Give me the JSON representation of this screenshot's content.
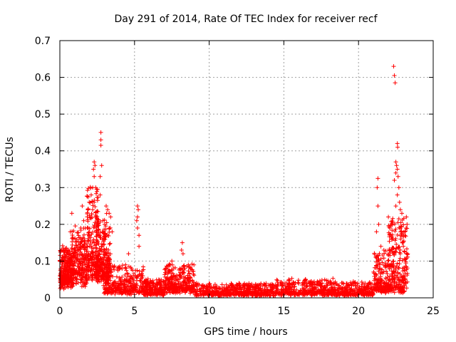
{
  "chart_data": {
    "type": "scatter",
    "title": "Day 291 of 2014, Rate Of TEC Index for receiver recf",
    "xlabel": "GPS time / hours",
    "ylabel": "ROTI / TECUs",
    "xlim": [
      0,
      25
    ],
    "ylim": [
      0,
      0.7
    ],
    "x_ticks": [
      0,
      5,
      10,
      15,
      20,
      25
    ],
    "x_tick_labels": [
      "0",
      "5",
      "10",
      "15",
      "20",
      "25"
    ],
    "y_ticks": [
      0,
      0.1,
      0.2,
      0.3,
      0.4,
      0.5,
      0.6,
      0.7
    ],
    "y_tick_labels": [
      "0",
      "0.1",
      "0.2",
      "0.3",
      "0.4",
      "0.5",
      "0.6",
      "0.7"
    ],
    "grid": true,
    "marker": "+",
    "series_color": "#ff0000",
    "series": [
      {
        "name": "ROTI",
        "segments": [
          {
            "x_start": 0.0,
            "x_end": 0.8,
            "y_base": 0.04,
            "y_spread": 0.09,
            "n": 260
          },
          {
            "x_start": 0.8,
            "x_end": 1.8,
            "y_base": 0.05,
            "y_spread": 0.13,
            "n": 240
          },
          {
            "x_start": 1.8,
            "x_end": 2.6,
            "y_base": 0.07,
            "y_spread": 0.22,
            "n": 220
          },
          {
            "x_start": 2.4,
            "x_end": 3.4,
            "y_base": 0.06,
            "y_spread": 0.15,
            "n": 240
          },
          {
            "x_start": 2.9,
            "x_end": 5.6,
            "y_base": 0.015,
            "y_spread": 0.07,
            "n": 320
          },
          {
            "x_start": 5.6,
            "x_end": 7.0,
            "y_base": 0.01,
            "y_spread": 0.04,
            "n": 200
          },
          {
            "x_start": 7.0,
            "x_end": 9.0,
            "y_base": 0.02,
            "y_spread": 0.07,
            "n": 300
          },
          {
            "x_start": 9.0,
            "x_end": 12.0,
            "y_base": 0.008,
            "y_spread": 0.03,
            "n": 300
          },
          {
            "x_start": 12.0,
            "x_end": 14.5,
            "y_base": 0.008,
            "y_spread": 0.03,
            "n": 260
          },
          {
            "x_start": 14.5,
            "x_end": 18.5,
            "y_base": 0.01,
            "y_spread": 0.04,
            "n": 400
          },
          {
            "x_start": 18.5,
            "x_end": 21.0,
            "y_base": 0.008,
            "y_spread": 0.035,
            "n": 260
          },
          {
            "x_start": 21.0,
            "x_end": 22.0,
            "y_base": 0.02,
            "y_spread": 0.1,
            "n": 160
          },
          {
            "x_start": 22.0,
            "x_end": 23.3,
            "y_base": 0.02,
            "y_spread": 0.2,
            "n": 260
          }
        ],
        "peaks": [
          {
            "x": 0.8,
            "y": 0.23
          },
          {
            "x": 0.7,
            "y": 0.18
          },
          {
            "x": 0.9,
            "y": 0.16
          },
          {
            "x": 1.5,
            "y": 0.25
          },
          {
            "x": 1.6,
            "y": 0.21
          },
          {
            "x": 1.4,
            "y": 0.19
          },
          {
            "x": 2.3,
            "y": 0.37
          },
          {
            "x": 2.35,
            "y": 0.36
          },
          {
            "x": 2.25,
            "y": 0.35
          },
          {
            "x": 2.3,
            "y": 0.33
          },
          {
            "x": 2.2,
            "y": 0.3
          },
          {
            "x": 2.4,
            "y": 0.3
          },
          {
            "x": 2.1,
            "y": 0.28
          },
          {
            "x": 2.3,
            "y": 0.26
          },
          {
            "x": 2.2,
            "y": 0.24
          },
          {
            "x": 2.4,
            "y": 0.22
          },
          {
            "x": 2.5,
            "y": 0.2
          },
          {
            "x": 2.75,
            "y": 0.45
          },
          {
            "x": 2.75,
            "y": 0.43
          },
          {
            "x": 2.75,
            "y": 0.415
          },
          {
            "x": 2.8,
            "y": 0.36
          },
          {
            "x": 2.7,
            "y": 0.33
          },
          {
            "x": 2.7,
            "y": 0.28
          },
          {
            "x": 3.1,
            "y": 0.25
          },
          {
            "x": 3.2,
            "y": 0.24
          },
          {
            "x": 3.3,
            "y": 0.23
          },
          {
            "x": 3.4,
            "y": 0.22
          },
          {
            "x": 3.0,
            "y": 0.2
          },
          {
            "x": 3.5,
            "y": 0.18
          },
          {
            "x": 5.2,
            "y": 0.25
          },
          {
            "x": 5.25,
            "y": 0.24
          },
          {
            "x": 5.2,
            "y": 0.22
          },
          {
            "x": 5.15,
            "y": 0.21
          },
          {
            "x": 5.2,
            "y": 0.19
          },
          {
            "x": 5.3,
            "y": 0.17
          },
          {
            "x": 5.3,
            "y": 0.14
          },
          {
            "x": 4.6,
            "y": 0.12
          },
          {
            "x": 4.4,
            "y": 0.09
          },
          {
            "x": 8.2,
            "y": 0.15
          },
          {
            "x": 8.15,
            "y": 0.13
          },
          {
            "x": 8.25,
            "y": 0.12
          },
          {
            "x": 7.5,
            "y": 0.1
          },
          {
            "x": 8.6,
            "y": 0.09
          },
          {
            "x": 21.3,
            "y": 0.325
          },
          {
            "x": 21.25,
            "y": 0.3
          },
          {
            "x": 21.3,
            "y": 0.25
          },
          {
            "x": 21.35,
            "y": 0.2
          },
          {
            "x": 21.2,
            "y": 0.18
          },
          {
            "x": 21.5,
            "y": 0.14
          },
          {
            "x": 21.7,
            "y": 0.13
          },
          {
            "x": 22.0,
            "y": 0.22
          },
          {
            "x": 22.1,
            "y": 0.19
          },
          {
            "x": 22.35,
            "y": 0.63
          },
          {
            "x": 22.4,
            "y": 0.605
          },
          {
            "x": 22.45,
            "y": 0.585
          },
          {
            "x": 22.6,
            "y": 0.42
          },
          {
            "x": 22.62,
            "y": 0.41
          },
          {
            "x": 22.5,
            "y": 0.37
          },
          {
            "x": 22.55,
            "y": 0.36
          },
          {
            "x": 22.6,
            "y": 0.35
          },
          {
            "x": 22.5,
            "y": 0.34
          },
          {
            "x": 22.65,
            "y": 0.33
          },
          {
            "x": 22.4,
            "y": 0.32
          },
          {
            "x": 22.7,
            "y": 0.3
          },
          {
            "x": 22.6,
            "y": 0.28
          },
          {
            "x": 22.75,
            "y": 0.26
          },
          {
            "x": 22.5,
            "y": 0.25
          },
          {
            "x": 22.8,
            "y": 0.24
          },
          {
            "x": 22.9,
            "y": 0.23
          },
          {
            "x": 23.2,
            "y": 0.22
          },
          {
            "x": 23.25,
            "y": 0.2
          },
          {
            "x": 23.1,
            "y": 0.18
          },
          {
            "x": 22.3,
            "y": 0.16
          },
          {
            "x": 23.0,
            "y": 0.14
          },
          {
            "x": 22.8,
            "y": 0.12
          }
        ]
      }
    ]
  }
}
